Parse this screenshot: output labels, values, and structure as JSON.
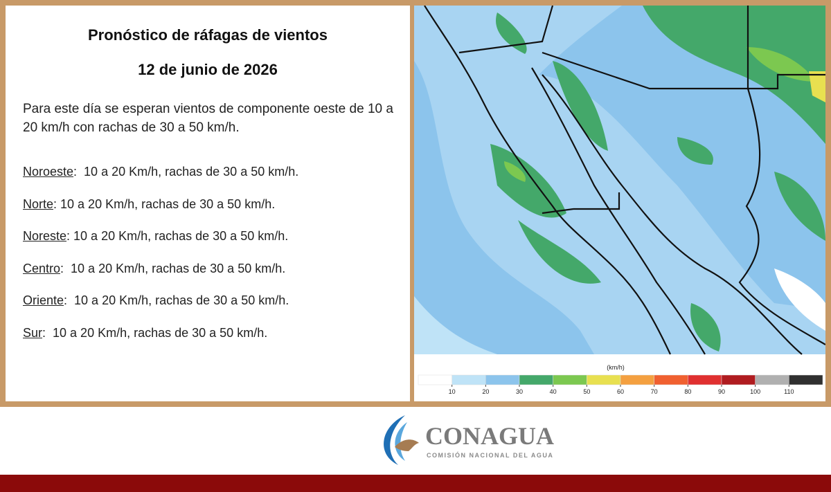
{
  "header": {
    "title": "Pronóstico de ráfagas de vientos",
    "date": "12 de junio de 2026"
  },
  "intro": "Para este día se esperan vientos de componente oeste de 10 a 20 km/h con rachas de 30 a 50 km/h.",
  "regions": [
    {
      "name": "Noroeste",
      "text": ":  10 a 20 Km/h, rachas de 30 a 50 km/h."
    },
    {
      "name": "Norte",
      "text": ": 10 a 20 Km/h, rachas de 30 a 50 km/h."
    },
    {
      "name": "Noreste",
      "text": ": 10 a 20 Km/h, rachas de 30 a 50 km/h."
    },
    {
      "name": "Centro",
      "text": ":  10 a 20 Km/h, rachas de 30 a 50 km/h."
    },
    {
      "name": "Oriente",
      "text": ":  10 a 20 Km/h, rachas de 30 a 50 km/h."
    },
    {
      "name": "Sur",
      "text": ":  10 a 20 Km/h, rachas de 30 a 50 km/h."
    }
  ],
  "legend": {
    "unit": "(km/h)",
    "ticks": [
      10,
      20,
      30,
      40,
      50,
      60,
      70,
      80,
      90,
      100,
      110
    ],
    "colors": [
      "#ffffff",
      "#bfe3f7",
      "#8cc4ec",
      "#44a86a",
      "#7cc850",
      "#e8e050",
      "#f4a040",
      "#f06030",
      "#e03030",
      "#b01c20",
      "#b0b0b0",
      "#303030"
    ]
  },
  "logo": {
    "name": "CONAGUA",
    "subtitle": "COMISIÓN NACIONAL DEL AGUA"
  }
}
